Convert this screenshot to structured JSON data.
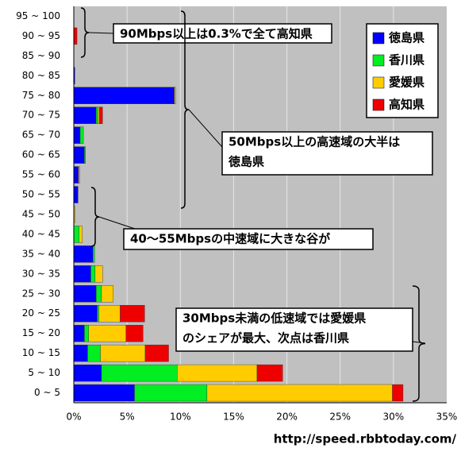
{
  "chart_data": {
    "type": "stacked-bar-horizontal",
    "categories": [
      "0 ~ 5",
      "5 ~ 10",
      "10 ~ 15",
      "15 ~ 20",
      "20 ~ 25",
      "25 ~ 30",
      "30 ~ 35",
      "35 ~ 40",
      "40 ~ 45",
      "45 ~ 50",
      "50 ~ 55",
      "55 ~ 60",
      "60 ~ 65",
      "65 ~ 70",
      "70 ~ 75",
      "75 ~ 80",
      "80 ~ 85",
      "85 ~ 90",
      "90 ~ 95",
      "95 ~ 100"
    ],
    "series": [
      {
        "name": "徳島県",
        "color": "#0000ff",
        "values": [
          5.7,
          2.6,
          1.3,
          1.0,
          2.2,
          2.1,
          1.6,
          1.8,
          0,
          0,
          0.4,
          0.45,
          1.0,
          0.6,
          2.1,
          9.45,
          0.1,
          0,
          0,
          0
        ]
      },
      {
        "name": "香川県",
        "color": "#00ee22",
        "values": [
          6.8,
          7.1,
          1.2,
          0.4,
          0.15,
          0.5,
          0.4,
          0.15,
          0.5,
          0,
          0,
          0,
          0.1,
          0.3,
          0.2,
          0,
          0,
          0,
          0,
          0
        ]
      },
      {
        "name": "愛媛県",
        "color": "#ffcc00",
        "values": [
          17.4,
          7.5,
          4.2,
          3.5,
          2.0,
          1.1,
          0.7,
          0,
          0.3,
          0.1,
          0,
          0.1,
          0,
          0,
          0.1,
          0.1,
          0,
          0,
          0,
          0
        ]
      },
      {
        "name": "高知県",
        "color": "#ee0000",
        "values": [
          1.0,
          2.4,
          2.2,
          1.6,
          2.3,
          0,
          0,
          0,
          0,
          0,
          0,
          0,
          0,
          0,
          0.3,
          0,
          0,
          0,
          0.3,
          0
        ]
      }
    ],
    "xlim": [
      0,
      35
    ],
    "xticks": [
      {
        "value": 0,
        "label": "0%"
      },
      {
        "value": 5,
        "label": "5%"
      },
      {
        "value": 10,
        "label": "10%"
      },
      {
        "value": 15,
        "label": "15%"
      },
      {
        "value": 20,
        "label": "20%"
      },
      {
        "value": 25,
        "label": "25%"
      },
      {
        "value": 30,
        "label": "30%"
      },
      {
        "value": 35,
        "label": "35%"
      }
    ],
    "grid": true,
    "legend": "top-right",
    "annotations": [
      [
        "90Mbps以上は0.3%で全て高知県"
      ],
      [
        "50Mbps以上の高速域の大半は",
        "徳島県"
      ],
      [
        "40～55Mbpsの中速域に大きな谷が"
      ],
      [
        "30Mbps未満の低速域では愛媛県",
        "のシェアが最大、次点は香川県"
      ]
    ],
    "source": "http://speed.rbbtoday.com/"
  }
}
